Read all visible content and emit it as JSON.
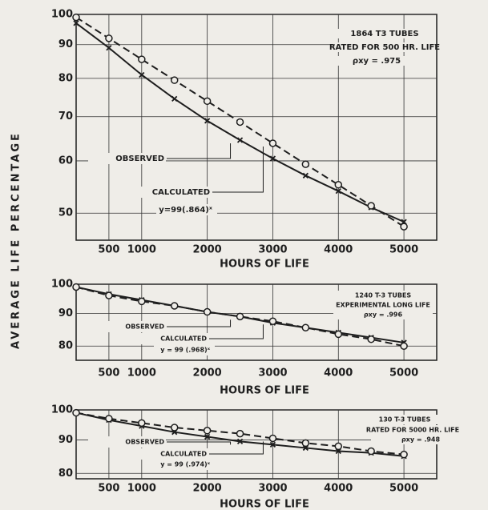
{
  "ylabel": "AVERAGE LIFE PERCENTAGE",
  "chart_data": [
    {
      "type": "line",
      "xlabel": "HOURS OF LIFE",
      "yscale": "log",
      "grid": true,
      "x": [
        0,
        500,
        1000,
        1500,
        2000,
        2500,
        3000,
        3500,
        4000,
        4500,
        5000
      ],
      "xlim": [
        0,
        5500
      ],
      "xticks": [
        500,
        1000,
        2000,
        3000,
        4000,
        5000
      ],
      "ylim": [
        45.5,
        100
      ],
      "yticks": [
        50,
        60,
        70,
        80,
        90,
        100
      ],
      "annotations": [
        "1864 T3 TUBES",
        "RATED FOR 500 HR. LIFE",
        "ρxy = .975"
      ],
      "formula": "y=99(.864)ˣ",
      "series": [
        {
          "name": "OBSERVED",
          "color": "#1e1e1e",
          "line": "solid",
          "marker": "x",
          "values": [
            97,
            89,
            81,
            74.5,
            69,
            64.5,
            60.5,
            57,
            54,
            51,
            48.5
          ]
        },
        {
          "name": "CALCULATED",
          "color": "#1e1e1e",
          "line": "dashed",
          "marker": "o",
          "values": [
            99,
            92,
            85.5,
            79.5,
            73.9,
            68.7,
            63.8,
            59.3,
            55.2,
            51.3,
            47.7
          ]
        }
      ]
    },
    {
      "type": "line",
      "xlabel": "HOURS OF LIFE",
      "yscale": "log",
      "grid": true,
      "x": [
        0,
        500,
        1000,
        1500,
        2000,
        2500,
        3000,
        3500,
        4000,
        4500,
        5000
      ],
      "xlim": [
        0,
        5500
      ],
      "xticks": [
        500,
        1000,
        2000,
        3000,
        4000,
        5000
      ],
      "ylim": [
        76,
        100
      ],
      "yticks": [
        80,
        90,
        100
      ],
      "annotations": [
        "1240 T-3 TUBES",
        "EXPERIMENTAL LONG LIFE",
        "ρxy = .996"
      ],
      "formula": "y = 99 (.968)ˣ",
      "series": [
        {
          "name": "OBSERVED",
          "color": "#1e1e1e",
          "line": "solid",
          "marker": "x",
          "values": [
            99,
            96.5,
            94.5,
            92.5,
            90.5,
            89,
            87,
            85.5,
            84,
            82.5,
            81
          ]
        },
        {
          "name": "CALCULATED",
          "color": "#1e1e1e",
          "line": "dashed",
          "marker": "o",
          "values": [
            99,
            96,
            94,
            92.5,
            90.5,
            89,
            87.5,
            85.5,
            83.5,
            82,
            80
          ]
        }
      ]
    },
    {
      "type": "line",
      "xlabel": "HOURS OF LIFE",
      "yscale": "log",
      "grid": true,
      "x": [
        0,
        500,
        1000,
        1500,
        2000,
        2500,
        3000,
        3500,
        4000,
        4500,
        5000
      ],
      "xlim": [
        0,
        5500
      ],
      "xticks": [
        500,
        1000,
        2000,
        3000,
        4000,
        5000
      ],
      "ylim": [
        78.5,
        100
      ],
      "yticks": [
        80,
        90,
        100
      ],
      "annotations": [
        "130 T-3 TUBES",
        "RATED FOR 5000 HR. LIFE",
        "ρxy = .948"
      ],
      "formula": "y = 99 (.974)ˣ",
      "series": [
        {
          "name": "OBSERVED",
          "color": "#1e1e1e",
          "line": "solid",
          "marker": "x",
          "values": [
            99,
            96.5,
            94.5,
            92.5,
            91,
            89.5,
            88.5,
            87.5,
            86.5,
            86,
            85
          ]
        },
        {
          "name": "CALCULATED",
          "color": "#1e1e1e",
          "line": "dashed",
          "marker": "o",
          "values": [
            99,
            97,
            95.5,
            94,
            93,
            92,
            90.5,
            89,
            88,
            86.5,
            85.5
          ]
        }
      ]
    }
  ]
}
